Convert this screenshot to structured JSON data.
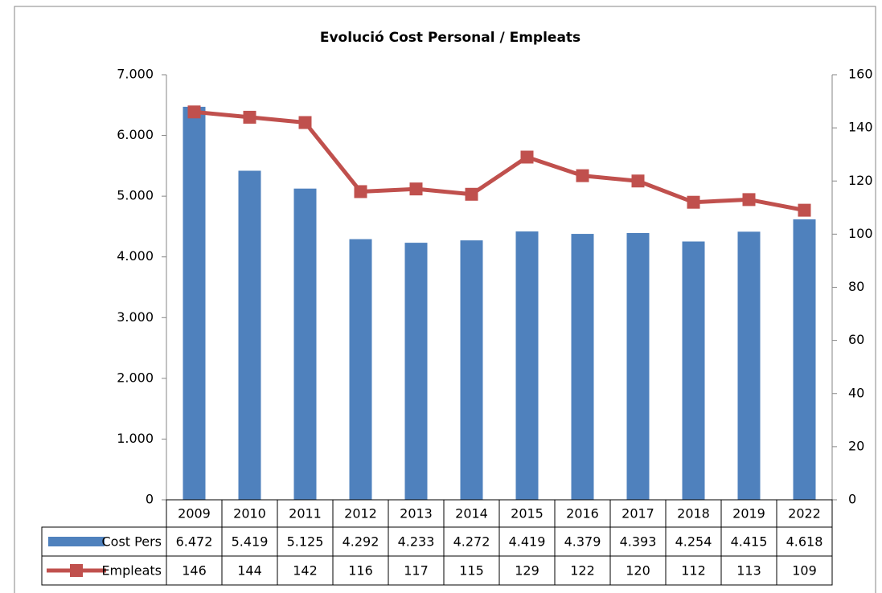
{
  "chart_data": {
    "type": "bar",
    "title": "Evolució Cost Personal / Empleats",
    "categories": [
      "2009",
      "2010",
      "2011",
      "2012",
      "2013",
      "2014",
      "2015",
      "2016",
      "2017",
      "2018",
      "2019",
      "2022"
    ],
    "series": [
      {
        "name": "Cost Pers",
        "color": "#4f81bd",
        "type": "bar",
        "values": [
          6472,
          5419,
          5125,
          4292,
          4233,
          4272,
          4419,
          4379,
          4393,
          4254,
          4415,
          4618
        ],
        "value_labels": [
          "6.472",
          "5.419",
          "5.125",
          "4.292",
          "4.233",
          "4.272",
          "4.419",
          "4.379",
          "4.393",
          "4.254",
          "4.415",
          "4.618"
        ]
      },
      {
        "name": "Empleats",
        "color": "#c0504d",
        "type": "line",
        "axis": "y2",
        "values": [
          146,
          144,
          142,
          116,
          117,
          115,
          129,
          122,
          120,
          112,
          113,
          109
        ]
      }
    ],
    "ylim": [
      0,
      7000
    ],
    "yticks": [
      0,
      {
        "value": 1000,
        "label": "1.000"
      },
      {
        "value": 2000,
        "label": "2.000"
      },
      {
        "value": 3000,
        "label": "3.000"
      },
      {
        "value": 4000,
        "label": "4.000"
      },
      {
        "value": 5000,
        "label": "5.000"
      },
      {
        "value": 6000,
        "label": "6.000"
      },
      {
        "value": 7000,
        "label": "7.000"
      }
    ],
    "y2lim": [
      0,
      160
    ],
    "y2ticks": [
      0,
      20,
      40,
      60,
      80,
      100,
      120,
      140,
      160
    ],
    "grid": false
  }
}
